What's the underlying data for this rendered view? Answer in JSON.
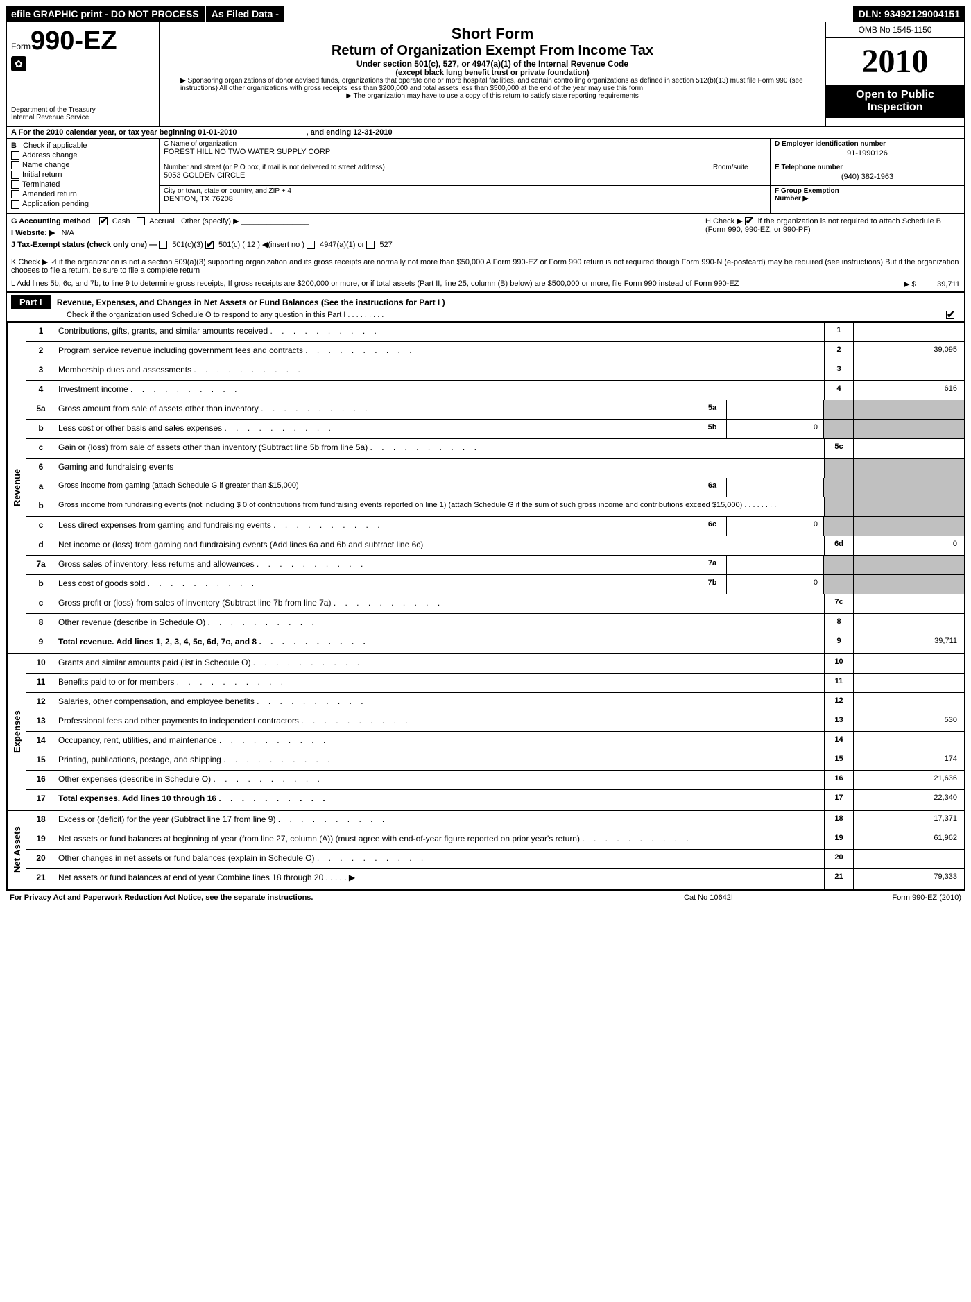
{
  "topbar": {
    "efile": "efile GRAPHIC print - DO NOT PROCESS",
    "asfiled": "As Filed Data -",
    "dln": "DLN: 93492129004151"
  },
  "header": {
    "form_prefix": "Form",
    "form_number": "990-EZ",
    "short_form": "Short Form",
    "main_title": "Return of Organization Exempt From Income Tax",
    "subtitle": "Under section 501(c), 527, or 4947(a)(1) of the Internal Revenue Code",
    "sub2": "(except black lung benefit trust or private foundation)",
    "note1": "▶ Sponsoring organizations of donor advised funds, organizations that operate one or more hospital facilities, and certain controlling organizations as defined in section 512(b)(13) must file Form 990 (see instructions) All other organizations with gross receipts less than $200,000 and total assets less than $500,000 at the end of the year may use this form",
    "note2": "▶ The organization may have to use a copy of this return to satisfy state reporting requirements",
    "dept": "Department of the Treasury",
    "irs": "Internal Revenue Service",
    "omb": "OMB No 1545-1150",
    "year": "2010",
    "open": "Open to Public",
    "inspection": "Inspection"
  },
  "rowA": {
    "text": "A  For the 2010 calendar year, or tax year beginning 01-01-2010",
    "ending": ", and ending 12-31-2010"
  },
  "colB": {
    "label": "B",
    "check_if": "Check if applicable",
    "addr_change": "Address change",
    "name_change": "Name change",
    "initial": "Initial return",
    "terminated": "Terminated",
    "amended": "Amended return",
    "pending": "Application pending"
  },
  "colC": {
    "name_label": "C Name of organization",
    "name_val": "FOREST HILL NO TWO WATER SUPPLY CORP",
    "street_label": "Number and street (or P O box, if mail is not delivered to street address)",
    "room_label": "Room/suite",
    "street_val": "5053 GOLDEN CIRCLE",
    "city_label": "City or town, state or country, and ZIP + 4",
    "city_val": "DENTON, TX 76208"
  },
  "colD": {
    "d_label": "D Employer identification number",
    "d_val": "91-1990126",
    "e_label": "E Telephone number",
    "e_val": "(940) 382-1963",
    "f_label": "F Group Exemption",
    "f_label2": "Number ▶"
  },
  "rowG": {
    "g": "G Accounting method",
    "cash": "Cash",
    "accrual": "Accrual",
    "other": "Other (specify) ▶",
    "i": "I Website: ▶",
    "i_val": "N/A",
    "j": "J Tax-Exempt status (check only one) —",
    "j1": "501(c)(3)",
    "j2": "501(c) ( 12 ) ◀(insert no )",
    "j3": "4947(a)(1) or",
    "j4": "527",
    "h": "H  Check ▶",
    "h2": "if the organization is not required to attach Schedule B (Form 990, 990-EZ, or 990-PF)"
  },
  "rowK": "K Check ▶ ☑  if the organization is not a section 509(a)(3) supporting organization and its gross receipts are normally not more than $50,000  A Form 990-EZ or Form 990 return is not required though Form 990-N (e-postcard) may be required (see instructions) But if the organization chooses to file a return, be sure to file a complete return",
  "rowL": {
    "text": "L Add lines 5b, 6c, and 7b, to line 9 to determine gross receipts, If gross receipts are $200,000 or more, or if total assets (Part II, line 25, column (B) below) are $500,000 or more, file Form 990 instead of Form 990-EZ",
    "arrow": "▶ $",
    "val": "39,711"
  },
  "part1": {
    "label": "Part I",
    "title": "Revenue, Expenses, and Changes in Net Assets or Fund Balances (See the instructions for Part I )",
    "sched": "Check if the organization used Schedule O to respond to any question in this Part I     .     .     .     .     .     .     .     .     ."
  },
  "lines": {
    "l1": {
      "n": "1",
      "d": "Contributions, gifts, grants, and similar amounts received",
      "v": ""
    },
    "l2": {
      "n": "2",
      "d": "Program service revenue including government fees and contracts",
      "v": "39,095"
    },
    "l3": {
      "n": "3",
      "d": "Membership dues and assessments",
      "v": ""
    },
    "l4": {
      "n": "4",
      "d": "Investment income",
      "v": "616"
    },
    "l5a": {
      "n": "5a",
      "d": "Gross amount from sale of assets other than inventory",
      "mn": "5a",
      "mv": ""
    },
    "l5b": {
      "n": "b",
      "d": "Less  cost or other basis and sales expenses",
      "mn": "5b",
      "mv": "0"
    },
    "l5c": {
      "n": "c",
      "d": "Gain or (loss) from sale of assets other than inventory (Subtract line 5b from line 5a)",
      "rn": "5c",
      "v": ""
    },
    "l6": {
      "n": "6",
      "d": "Gaming and fundraising events"
    },
    "l6a": {
      "n": "a",
      "d": "Gross income from gaming (attach Schedule G if greater than $15,000)",
      "mn": "6a",
      "mv": ""
    },
    "l6b": {
      "n": "b",
      "d": "Gross income from fundraising events (not including $ 0 of contributions from fundraising events reported on line 1) (attach Schedule G if the sum of such gross income and contributions exceed $15,000)     .     .     .     .     .     .     .     ."
    },
    "l6c": {
      "n": "c",
      "d": "Less  direct expenses from gaming and fundraising events",
      "mn": "6c",
      "mv": "0"
    },
    "l6d": {
      "n": "d",
      "d": "Net income or (loss) from gaming and fundraising events (Add lines 6a and 6b and subtract line 6c)",
      "rn": "6d",
      "v": "0"
    },
    "l7a": {
      "n": "7a",
      "d": "Gross sales of inventory, less returns and allowances",
      "mn": "7a",
      "mv": ""
    },
    "l7b": {
      "n": "b",
      "d": "Less  cost of goods sold",
      "mn": "7b",
      "mv": "0"
    },
    "l7c": {
      "n": "c",
      "d": "Gross profit or (loss) from sales of inventory (Subtract line 7b from line 7a)",
      "rn": "7c",
      "v": ""
    },
    "l8": {
      "n": "8",
      "d": "Other revenue (describe in Schedule O)",
      "v": ""
    },
    "l9": {
      "n": "9",
      "d": "Total revenue. Add lines 1, 2, 3, 4, 5c, 6d, 7c, and 8",
      "v": "39,711"
    },
    "l10": {
      "n": "10",
      "d": "Grants and similar amounts paid (list in Schedule O)",
      "v": ""
    },
    "l11": {
      "n": "11",
      "d": "Benefits paid to or for members",
      "v": ""
    },
    "l12": {
      "n": "12",
      "d": "Salaries, other compensation, and employee benefits",
      "v": ""
    },
    "l13": {
      "n": "13",
      "d": "Professional fees and other payments to independent contractors",
      "v": "530"
    },
    "l14": {
      "n": "14",
      "d": "Occupancy, rent, utilities, and maintenance",
      "v": ""
    },
    "l15": {
      "n": "15",
      "d": "Printing, publications, postage, and shipping",
      "v": "174"
    },
    "l16": {
      "n": "16",
      "d": "Other expenses (describe in Schedule O)",
      "v": "21,636"
    },
    "l17": {
      "n": "17",
      "d": "Total expenses. Add lines 10 through 16",
      "v": "22,340"
    },
    "l18": {
      "n": "18",
      "d": "Excess or (deficit) for the year (Subtract line 17 from line 9)",
      "v": "17,371"
    },
    "l19": {
      "n": "19",
      "d": "Net assets or fund balances at beginning of year (from line 27, column (A)) (must agree with end-of-year figure reported on prior year's return)",
      "v": "61,962"
    },
    "l20": {
      "n": "20",
      "d": "Other changes in net assets or fund balances (explain in Schedule O)",
      "v": ""
    },
    "l21": {
      "n": "21",
      "d": "Net assets or fund balances at end of year  Combine lines 18 through 20     .     .     .     .     . ▶",
      "v": "79,333"
    }
  },
  "sections": {
    "revenue": "Revenue",
    "expenses": "Expenses",
    "netassets": "Net Assets"
  },
  "footer": {
    "left": "For Privacy Act and Paperwork Reduction Act Notice, see the separate instructions.",
    "mid": "Cat No 10642I",
    "right": "Form 990-EZ (2010)"
  }
}
